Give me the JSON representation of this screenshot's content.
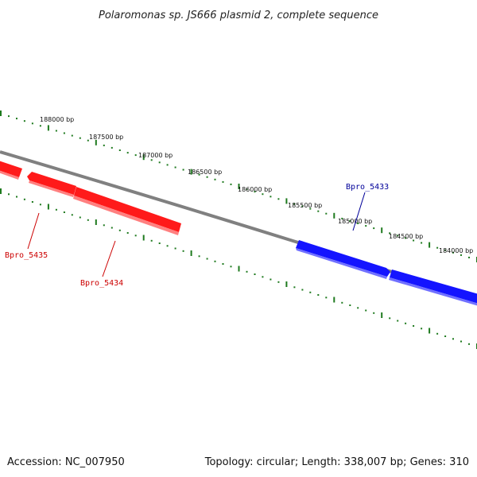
{
  "title": "Polaromonas sp. JS666 plasmid 2, complete sequence",
  "footer": {
    "accession": "Accession: NC_007950",
    "summary": "Topology: circular; Length: 338,007 bp; Genes: 310"
  },
  "colors": {
    "backbone": "#808080",
    "ticks": "#1e7a1e",
    "reverse_strand": "#ff1a1a",
    "forward_strand": "#1414ff",
    "reverse_label": "#cc0000",
    "forward_label": "#000099"
  },
  "ruler": {
    "labels": [
      "188000 bp",
      "187500 bp",
      "187000 bp",
      "186500 bp",
      "186000 bp",
      "185500 bp",
      "185000 bp",
      "184500 bp",
      "184000 bp"
    ]
  },
  "genes": [
    {
      "name": "Bpro_5435",
      "strand": "reverse"
    },
    {
      "name": "Bpro_5434",
      "strand": "reverse"
    },
    {
      "name": "Bpro_5433",
      "strand": "forward"
    }
  ]
}
